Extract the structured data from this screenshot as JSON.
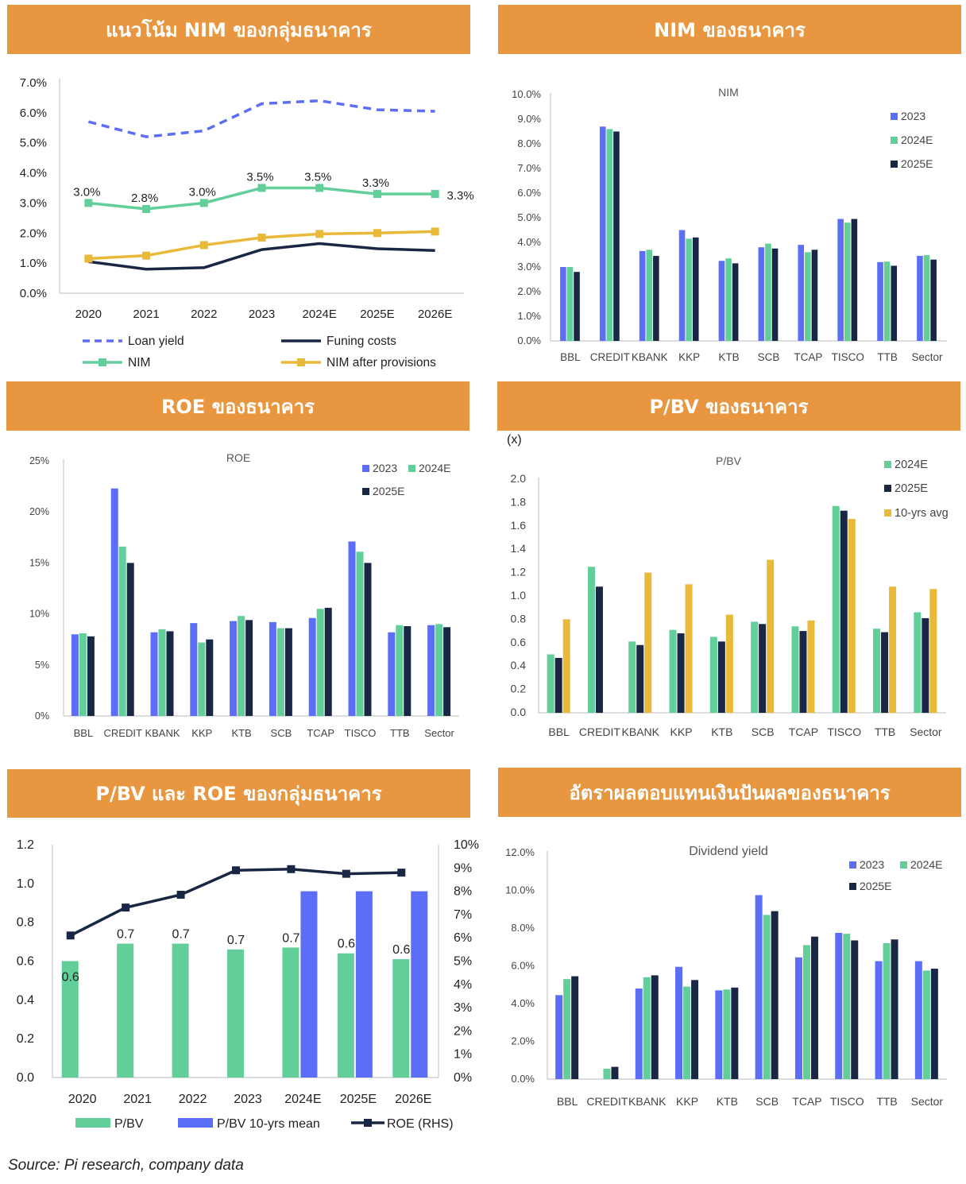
{
  "colors": {
    "header": "#e8963f",
    "blue": "#5b6ef5",
    "green": "#62cf9a",
    "navy": "#1a2744",
    "yellow": "#e9b93a",
    "dashblue": "#5b6ef5"
  },
  "headers": {
    "p1": "แนวโน้ม NIM ของกลุ่มธนาคาร",
    "p2": "NIM ของธนาคาร",
    "p3": "ROE ของธนาคาร",
    "p4": "P/BV ของธนาคาร",
    "p5": "P/BV และ ROE ของกลุ่มธนาคาร",
    "p6": "อัตราผลตอบแทนเงินปันผลของธนาคาร"
  },
  "source": "Source: Pi research, company data",
  "chart_data": [
    {
      "id": "nim_trend",
      "type": "line",
      "categories": [
        "2020",
        "2021",
        "2022",
        "2023",
        "2024E",
        "2025E",
        "2026E"
      ],
      "ylim": [
        0,
        7
      ],
      "yticks": [
        "0.0%",
        "1.0%",
        "2.0%",
        "3.0%",
        "4.0%",
        "5.0%",
        "6.0%",
        "7.0%"
      ],
      "series": [
        {
          "name": "Loan yield",
          "values": [
            5.7,
            5.2,
            5.4,
            6.3,
            6.4,
            6.1,
            6.05
          ],
          "style": "dashed"
        },
        {
          "name": "Funing costs",
          "values": [
            1.05,
            0.8,
            0.85,
            1.45,
            1.65,
            1.48,
            1.42
          ],
          "style": "line"
        },
        {
          "name": "NIM",
          "values": [
            3.0,
            2.8,
            3.0,
            3.5,
            3.5,
            3.3,
            3.3
          ],
          "style": "marker",
          "labels": [
            "3.0%",
            "2.8%",
            "3.0%",
            "3.5%",
            "3.5%",
            "3.3%",
            "3.3%"
          ]
        },
        {
          "name": "NIM after provisions",
          "values": [
            1.15,
            1.25,
            1.6,
            1.85,
            1.97,
            2.0,
            2.05
          ],
          "style": "marker"
        }
      ]
    },
    {
      "id": "nim_banks",
      "type": "bar",
      "title": "NIM",
      "categories": [
        "BBL",
        "CREDIT",
        "KBANK",
        "KKP",
        "KTB",
        "SCB",
        "TCAP",
        "TISCO",
        "TTB",
        "Sector"
      ],
      "ylim": [
        0,
        10
      ],
      "yticks": [
        "0.0%",
        "1.0%",
        "2.0%",
        "3.0%",
        "4.0%",
        "5.0%",
        "6.0%",
        "7.0%",
        "8.0%",
        "9.0%",
        "10.0%"
      ],
      "series": [
        {
          "name": "2023",
          "values": [
            3.0,
            8.7,
            3.65,
            4.5,
            3.25,
            3.8,
            3.9,
            4.95,
            3.2,
            3.45
          ]
        },
        {
          "name": "2024E",
          "values": [
            3.0,
            8.6,
            3.7,
            4.15,
            3.35,
            3.95,
            3.6,
            4.8,
            3.22,
            3.48
          ]
        },
        {
          "name": "2025E",
          "values": [
            2.8,
            8.5,
            3.45,
            4.2,
            3.15,
            3.75,
            3.7,
            4.95,
            3.05,
            3.3
          ]
        }
      ]
    },
    {
      "id": "roe_banks",
      "type": "bar",
      "title": "ROE",
      "categories": [
        "BBL",
        "CREDIT",
        "KBANK",
        "KKP",
        "KTB",
        "SCB",
        "TCAP",
        "TISCO",
        "TTB",
        "Sector"
      ],
      "ylim": [
        0,
        25
      ],
      "yticks": [
        "0%",
        "5%",
        "10%",
        "15%",
        "20%",
        "25%"
      ],
      "series": [
        {
          "name": "2023",
          "values": [
            8.0,
            22.3,
            8.2,
            9.1,
            9.3,
            9.2,
            9.6,
            17.1,
            8.2,
            8.9
          ]
        },
        {
          "name": "2024E",
          "values": [
            8.1,
            16.6,
            8.5,
            7.2,
            9.8,
            8.6,
            10.5,
            16.1,
            8.9,
            9.0
          ]
        },
        {
          "name": "2025E",
          "values": [
            7.8,
            15.0,
            8.3,
            7.5,
            9.4,
            8.6,
            10.6,
            15.0,
            8.8,
            8.7
          ]
        }
      ]
    },
    {
      "id": "pbv_banks",
      "type": "bar",
      "title": "P/BV",
      "yunit": "(x)",
      "categories": [
        "BBL",
        "CREDIT",
        "KBANK",
        "KKP",
        "KTB",
        "SCB",
        "TCAP",
        "TISCO",
        "TTB",
        "Sector"
      ],
      "ylim": [
        0,
        2.0
      ],
      "yticks": [
        "0.0",
        "0.2",
        "0.4",
        "0.6",
        "0.8",
        "1.0",
        "1.2",
        "1.4",
        "1.6",
        "1.8",
        "2.0"
      ],
      "series": [
        {
          "name": "2024E",
          "values": [
            0.5,
            1.25,
            0.61,
            0.71,
            0.65,
            0.78,
            0.74,
            1.77,
            0.72,
            0.86
          ]
        },
        {
          "name": "2025E",
          "values": [
            0.47,
            1.08,
            0.58,
            0.68,
            0.61,
            0.76,
            0.7,
            1.73,
            0.69,
            0.81
          ]
        },
        {
          "name": "10-yrs avg",
          "values": [
            0.8,
            null,
            1.2,
            1.1,
            0.84,
            1.31,
            0.79,
            1.66,
            1.08,
            1.06
          ]
        }
      ]
    },
    {
      "id": "pbv_roe_trend",
      "type": "bar",
      "categories": [
        "2020",
        "2021",
        "2022",
        "2023",
        "2024E",
        "2025E",
        "2026E"
      ],
      "ylim": [
        0,
        1.2
      ],
      "yticks": [
        "0.0",
        "0.2",
        "0.4",
        "0.6",
        "0.8",
        "1.0",
        "1.2"
      ],
      "y2lim": [
        0,
        10
      ],
      "y2ticks": [
        "0%",
        "1%",
        "2%",
        "3%",
        "4%",
        "5%",
        "6%",
        "7%",
        "8%",
        "9%",
        "10%"
      ],
      "series": [
        {
          "name": "P/BV",
          "values": [
            0.6,
            0.69,
            0.69,
            0.66,
            0.67,
            0.64,
            0.61
          ],
          "labels": [
            "0.6",
            "0.7",
            "0.7",
            "0.7",
            "0.7",
            "0.6",
            "0.6"
          ]
        },
        {
          "name": "P/BV 10-yrs mean",
          "values": [
            null,
            null,
            null,
            null,
            0.96,
            0.96,
            0.96
          ]
        },
        {
          "name": "ROE (RHS)",
          "values": [
            6.1,
            7.3,
            7.85,
            8.9,
            8.95,
            8.75,
            8.8
          ],
          "axis": "right"
        }
      ]
    },
    {
      "id": "dividend_yield",
      "type": "bar",
      "title": "Dividend yield",
      "categories": [
        "BBL",
        "CREDIT",
        "KBANK",
        "KKP",
        "KTB",
        "SCB",
        "TCAP",
        "TISCO",
        "TTB",
        "Sector"
      ],
      "ylim": [
        0,
        12
      ],
      "yticks": [
        "0.0%",
        "2.0%",
        "4.0%",
        "6.0%",
        "8.0%",
        "10.0%",
        "12.0%"
      ],
      "series": [
        {
          "name": "2023",
          "values": [
            4.45,
            0,
            4.8,
            5.95,
            4.7,
            9.75,
            6.45,
            7.75,
            6.25,
            6.25
          ]
        },
        {
          "name": "2024E",
          "values": [
            5.3,
            0.55,
            5.4,
            4.9,
            4.75,
            8.7,
            7.1,
            7.7,
            7.2,
            5.75
          ]
        },
        {
          "name": "2025E",
          "values": [
            5.45,
            0.65,
            5.5,
            5.25,
            4.85,
            8.9,
            7.55,
            7.35,
            7.4,
            5.85
          ]
        }
      ]
    }
  ]
}
